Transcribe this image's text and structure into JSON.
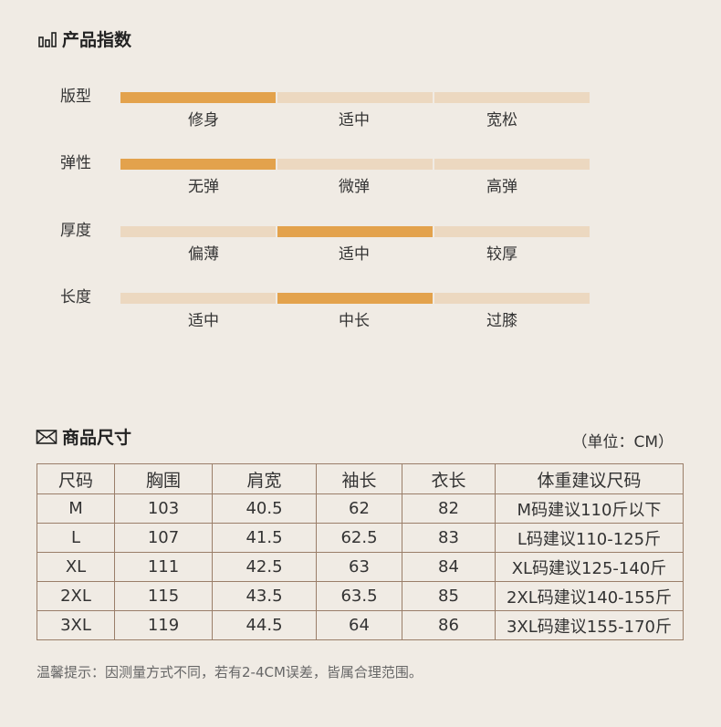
{
  "product_index": {
    "title": "产品指数",
    "rows": [
      {
        "label": "版型",
        "options": [
          "修身",
          "适中",
          "宽松"
        ],
        "selected_index": 0
      },
      {
        "label": "弹性",
        "options": [
          "无弹",
          "微弹",
          "高弹"
        ],
        "selected_index": 0
      },
      {
        "label": "厚度",
        "options": [
          "偏薄",
          "适中",
          "较厚"
        ],
        "selected_index": 1
      },
      {
        "label": "长度",
        "options": [
          "适中",
          "中长",
          "过膝"
        ],
        "selected_index": 1
      }
    ]
  },
  "size_section": {
    "title": "商品尺寸",
    "unit": "（单位：CM）",
    "headers": [
      "尺码",
      "胸围",
      "肩宽",
      "袖长",
      "衣长",
      "体重建议尺码"
    ],
    "rows": [
      [
        "M",
        "103",
        "40.5",
        "62",
        "82",
        "M码建议110斤以下"
      ],
      [
        "L",
        "107",
        "41.5",
        "62.5",
        "83",
        "L码建议110-125斤"
      ],
      [
        "XL",
        "111",
        "42.5",
        "63",
        "84",
        "XL码建议125-140斤"
      ],
      [
        "2XL",
        "115",
        "43.5",
        "63.5",
        "85",
        "2XL码建议140-155斤"
      ],
      [
        "3XL",
        "119",
        "44.5",
        "64",
        "86",
        "3XL码建议155-170斤"
      ]
    ]
  },
  "note": "温馨提示：因测量方式不同，若有2-4CM误差，皆属合理范围。",
  "colors": {
    "background": "#f0ebe4",
    "bar_active": "#e3a24c",
    "bar_inactive": "#ecd8c0",
    "table_border": "#9a7e69"
  },
  "icons": [
    "bar-chart-icon",
    "envelope-icon"
  ]
}
